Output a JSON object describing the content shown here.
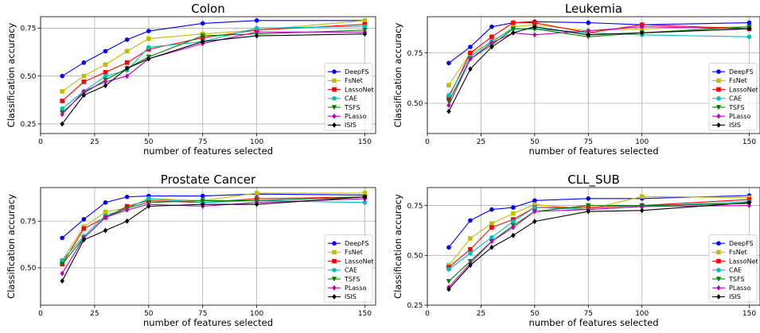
{
  "chart_data": [
    {
      "type": "line",
      "title": "Colon",
      "xlabel": "number of features selected",
      "ylabel": "Classification accuracy",
      "x": [
        10,
        20,
        30,
        40,
        50,
        75,
        100,
        150
      ],
      "xlim": [
        0,
        155
      ],
      "ylim": [
        0.2,
        0.81
      ],
      "xticks": [
        0,
        25,
        50,
        75,
        100,
        150
      ],
      "yticks": [
        0.25,
        0.5,
        0.75
      ],
      "grid": true,
      "legend_position": "lower right",
      "series": [
        {
          "name": "DeepFS",
          "color": "#0000ff",
          "marker": "circle",
          "values": [
            0.5,
            0.57,
            0.63,
            0.69,
            0.735,
            0.775,
            0.79,
            0.79
          ]
        },
        {
          "name": "FsNet",
          "color": "#bfbf00",
          "marker": "square",
          "values": [
            0.42,
            0.5,
            0.56,
            0.63,
            0.695,
            0.72,
            0.74,
            0.79
          ]
        },
        {
          "name": "LassoNet",
          "color": "#ff0000",
          "marker": "square",
          "values": [
            0.37,
            0.47,
            0.52,
            0.57,
            0.64,
            0.7,
            0.74,
            0.77
          ]
        },
        {
          "name": "CAE",
          "color": "#00bfbf",
          "marker": "circle",
          "values": [
            0.33,
            0.42,
            0.5,
            0.53,
            0.65,
            0.68,
            0.75,
            0.76
          ]
        },
        {
          "name": "TSFS",
          "color": "#008000",
          "marker": "triangle-down",
          "values": [
            0.31,
            0.41,
            0.48,
            0.54,
            0.6,
            0.71,
            0.72,
            0.74
          ]
        },
        {
          "name": "PLasso",
          "color": "#bf00bf",
          "marker": "diamond",
          "values": [
            0.3,
            0.42,
            0.47,
            0.5,
            0.59,
            0.67,
            0.73,
            0.73
          ]
        },
        {
          "name": "ISIS",
          "color": "#000000",
          "marker": "diamond",
          "values": [
            0.25,
            0.4,
            0.45,
            0.54,
            0.59,
            0.68,
            0.71,
            0.72
          ]
        }
      ]
    },
    {
      "type": "line",
      "title": "Leukemia",
      "xlabel": "number of features selected",
      "ylabel": "Classification accuracy",
      "x": [
        10,
        20,
        30,
        40,
        50,
        75,
        100,
        150
      ],
      "xlim": [
        0,
        155
      ],
      "ylim": [
        0.35,
        0.93
      ],
      "xticks": [
        0,
        25,
        50,
        75,
        100,
        150
      ],
      "yticks": [
        0.5,
        0.75
      ],
      "grid": true,
      "legend_position": "lower right",
      "series": [
        {
          "name": "DeepFS",
          "color": "#0000ff",
          "marker": "circle",
          "values": [
            0.7,
            0.78,
            0.88,
            0.9,
            0.905,
            0.9,
            0.89,
            0.9
          ]
        },
        {
          "name": "FsNet",
          "color": "#bfbf00",
          "marker": "square",
          "values": [
            0.59,
            0.75,
            0.8,
            0.88,
            0.89,
            0.86,
            0.87,
            0.88
          ]
        },
        {
          "name": "LassoNet",
          "color": "#ff0000",
          "marker": "square",
          "values": [
            0.53,
            0.75,
            0.83,
            0.9,
            0.9,
            0.85,
            0.89,
            0.87
          ]
        },
        {
          "name": "CAE",
          "color": "#00bfbf",
          "marker": "circle",
          "values": [
            0.54,
            0.73,
            0.81,
            0.87,
            0.87,
            0.85,
            0.84,
            0.83
          ]
        },
        {
          "name": "TSFS",
          "color": "#008000",
          "marker": "triangle-down",
          "values": [
            0.51,
            0.72,
            0.79,
            0.87,
            0.87,
            0.83,
            0.85,
            0.88
          ]
        },
        {
          "name": "PLasso",
          "color": "#bf00bf",
          "marker": "diamond",
          "values": [
            0.49,
            0.72,
            0.8,
            0.85,
            0.84,
            0.86,
            0.88,
            0.87
          ]
        },
        {
          "name": "ISIS",
          "color": "#000000",
          "marker": "diamond",
          "values": [
            0.46,
            0.67,
            0.78,
            0.85,
            0.88,
            0.84,
            0.85,
            0.87
          ]
        }
      ]
    },
    {
      "type": "line",
      "title": "Prostate Cancer",
      "xlabel": "number of features selected",
      "ylabel": "Classification accuracy",
      "x": [
        10,
        20,
        30,
        40,
        50,
        75,
        100,
        150
      ],
      "xlim": [
        0,
        155
      ],
      "ylim": [
        0.3,
        0.93
      ],
      "xticks": [
        0,
        25,
        50,
        75,
        100,
        150
      ],
      "yticks": [
        0.5,
        0.75
      ],
      "grid": true,
      "legend_position": "lower right",
      "series": [
        {
          "name": "DeepFS",
          "color": "#0000ff",
          "marker": "circle",
          "values": [
            0.66,
            0.76,
            0.85,
            0.88,
            0.885,
            0.885,
            0.895,
            0.89
          ]
        },
        {
          "name": "FsNet",
          "color": "#bfbf00",
          "marker": "square",
          "values": [
            0.54,
            0.72,
            0.8,
            0.82,
            0.87,
            0.86,
            0.9,
            0.9
          ]
        },
        {
          "name": "LassoNet",
          "color": "#ff0000",
          "marker": "square",
          "values": [
            0.52,
            0.71,
            0.77,
            0.83,
            0.86,
            0.85,
            0.87,
            0.88
          ]
        },
        {
          "name": "CAE",
          "color": "#00bfbf",
          "marker": "circle",
          "values": [
            0.54,
            0.67,
            0.78,
            0.82,
            0.87,
            0.85,
            0.86,
            0.85
          ]
        },
        {
          "name": "TSFS",
          "color": "#008000",
          "marker": "triangle-down",
          "values": [
            0.52,
            0.66,
            0.77,
            0.82,
            0.85,
            0.86,
            0.86,
            0.88
          ]
        },
        {
          "name": "PLasso",
          "color": "#bf00bf",
          "marker": "diamond",
          "values": [
            0.47,
            0.66,
            0.77,
            0.81,
            0.84,
            0.83,
            0.85,
            0.87
          ]
        },
        {
          "name": "ISIS",
          "color": "#000000",
          "marker": "diamond",
          "values": [
            0.43,
            0.65,
            0.7,
            0.75,
            0.83,
            0.84,
            0.84,
            0.88
          ]
        }
      ]
    },
    {
      "type": "line",
      "title": "CLL_SUB",
      "xlabel": "number of features selected",
      "ylabel": "Classification accuracy",
      "x": [
        10,
        20,
        30,
        40,
        50,
        75,
        100,
        150
      ],
      "xlim": [
        0,
        155
      ],
      "ylim": [
        0.25,
        0.84
      ],
      "xticks": [
        0,
        25,
        50,
        75,
        100,
        150
      ],
      "yticks": [
        0.25,
        0.5,
        0.75
      ],
      "grid": true,
      "legend_position": "lower right",
      "series": [
        {
          "name": "DeepFS",
          "color": "#0000ff",
          "marker": "circle",
          "values": [
            0.54,
            0.675,
            0.73,
            0.74,
            0.775,
            0.785,
            0.785,
            0.8
          ]
        },
        {
          "name": "FsNet",
          "color": "#bfbf00",
          "marker": "square",
          "values": [
            0.45,
            0.585,
            0.66,
            0.71,
            0.755,
            0.73,
            0.795,
            0.79
          ]
        },
        {
          "name": "LassoNet",
          "color": "#ff0000",
          "marker": "square",
          "values": [
            0.44,
            0.53,
            0.64,
            0.68,
            0.74,
            0.74,
            0.75,
            0.78
          ]
        },
        {
          "name": "CAE",
          "color": "#00bfbf",
          "marker": "circle",
          "values": [
            0.43,
            0.51,
            0.59,
            0.67,
            0.74,
            0.73,
            0.745,
            0.77
          ]
        },
        {
          "name": "TSFS",
          "color": "#008000",
          "marker": "triangle-down",
          "values": [
            0.37,
            0.47,
            0.57,
            0.65,
            0.72,
            0.75,
            0.75,
            0.76
          ]
        },
        {
          "name": "PLasso",
          "color": "#bf00bf",
          "marker": "diamond",
          "values": [
            0.34,
            0.46,
            0.57,
            0.64,
            0.72,
            0.73,
            0.745,
            0.75
          ]
        },
        {
          "name": "ISIS",
          "color": "#000000",
          "marker": "diamond",
          "values": [
            0.33,
            0.45,
            0.54,
            0.6,
            0.67,
            0.72,
            0.725,
            0.765
          ]
        }
      ]
    }
  ]
}
